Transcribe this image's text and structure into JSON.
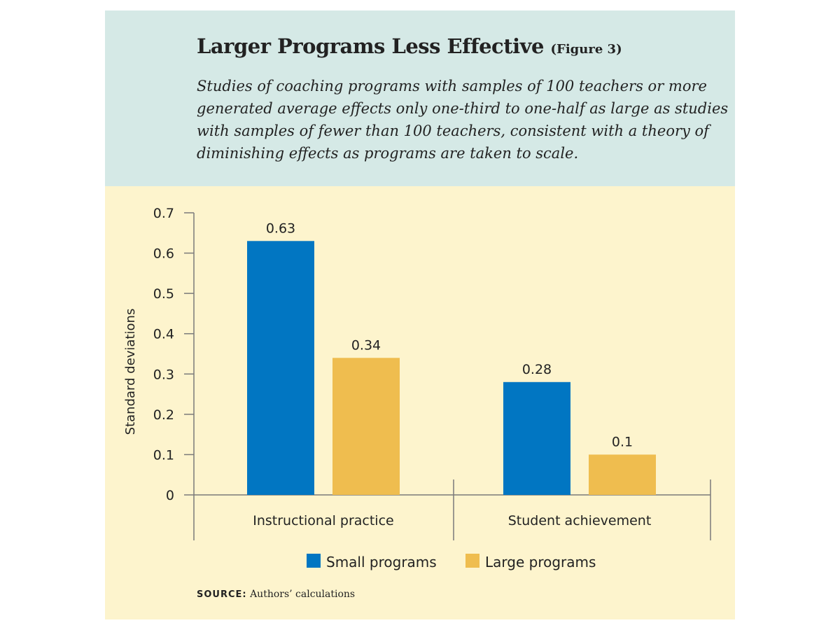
{
  "header": {
    "title": "Larger Programs Less Effective",
    "figure_tag": "(Figure 3)",
    "subtitle": "Studies of coaching programs with samples of 100 teachers or more generated average effects only one-third to one-half as large as studies with samples of fewer than 100 teachers, consistent with a theory of diminishing effects as programs are taken to scale."
  },
  "source": {
    "label": "SOURCE:",
    "text": "Authors’ calculations"
  },
  "colors": {
    "header_background": "#d5e9e6",
    "plot_background": "#fdf4cd",
    "small_programs": "#0176c2",
    "large_programs": "#efbd4f"
  },
  "chart_data": {
    "type": "bar",
    "categories": [
      "Instructional practice",
      "Student achievement"
    ],
    "series": [
      {
        "name": "Small programs",
        "values": [
          0.63,
          0.28
        ],
        "color": "#0176c2"
      },
      {
        "name": "Large programs",
        "values": [
          0.34,
          0.1
        ],
        "color": "#efbd4f"
      }
    ],
    "data_labels": [
      [
        "0.63",
        "0.28"
      ],
      [
        "0.34",
        "0.1"
      ]
    ],
    "ylabel": "Standard deviations",
    "xlabel": "",
    "ylim": [
      0,
      0.7
    ],
    "yticks": [
      "0",
      "0.1",
      "0.2",
      "0.3",
      "0.4",
      "0.5",
      "0.6",
      "0.7"
    ],
    "grid": false,
    "legend_position": "bottom-center"
  }
}
